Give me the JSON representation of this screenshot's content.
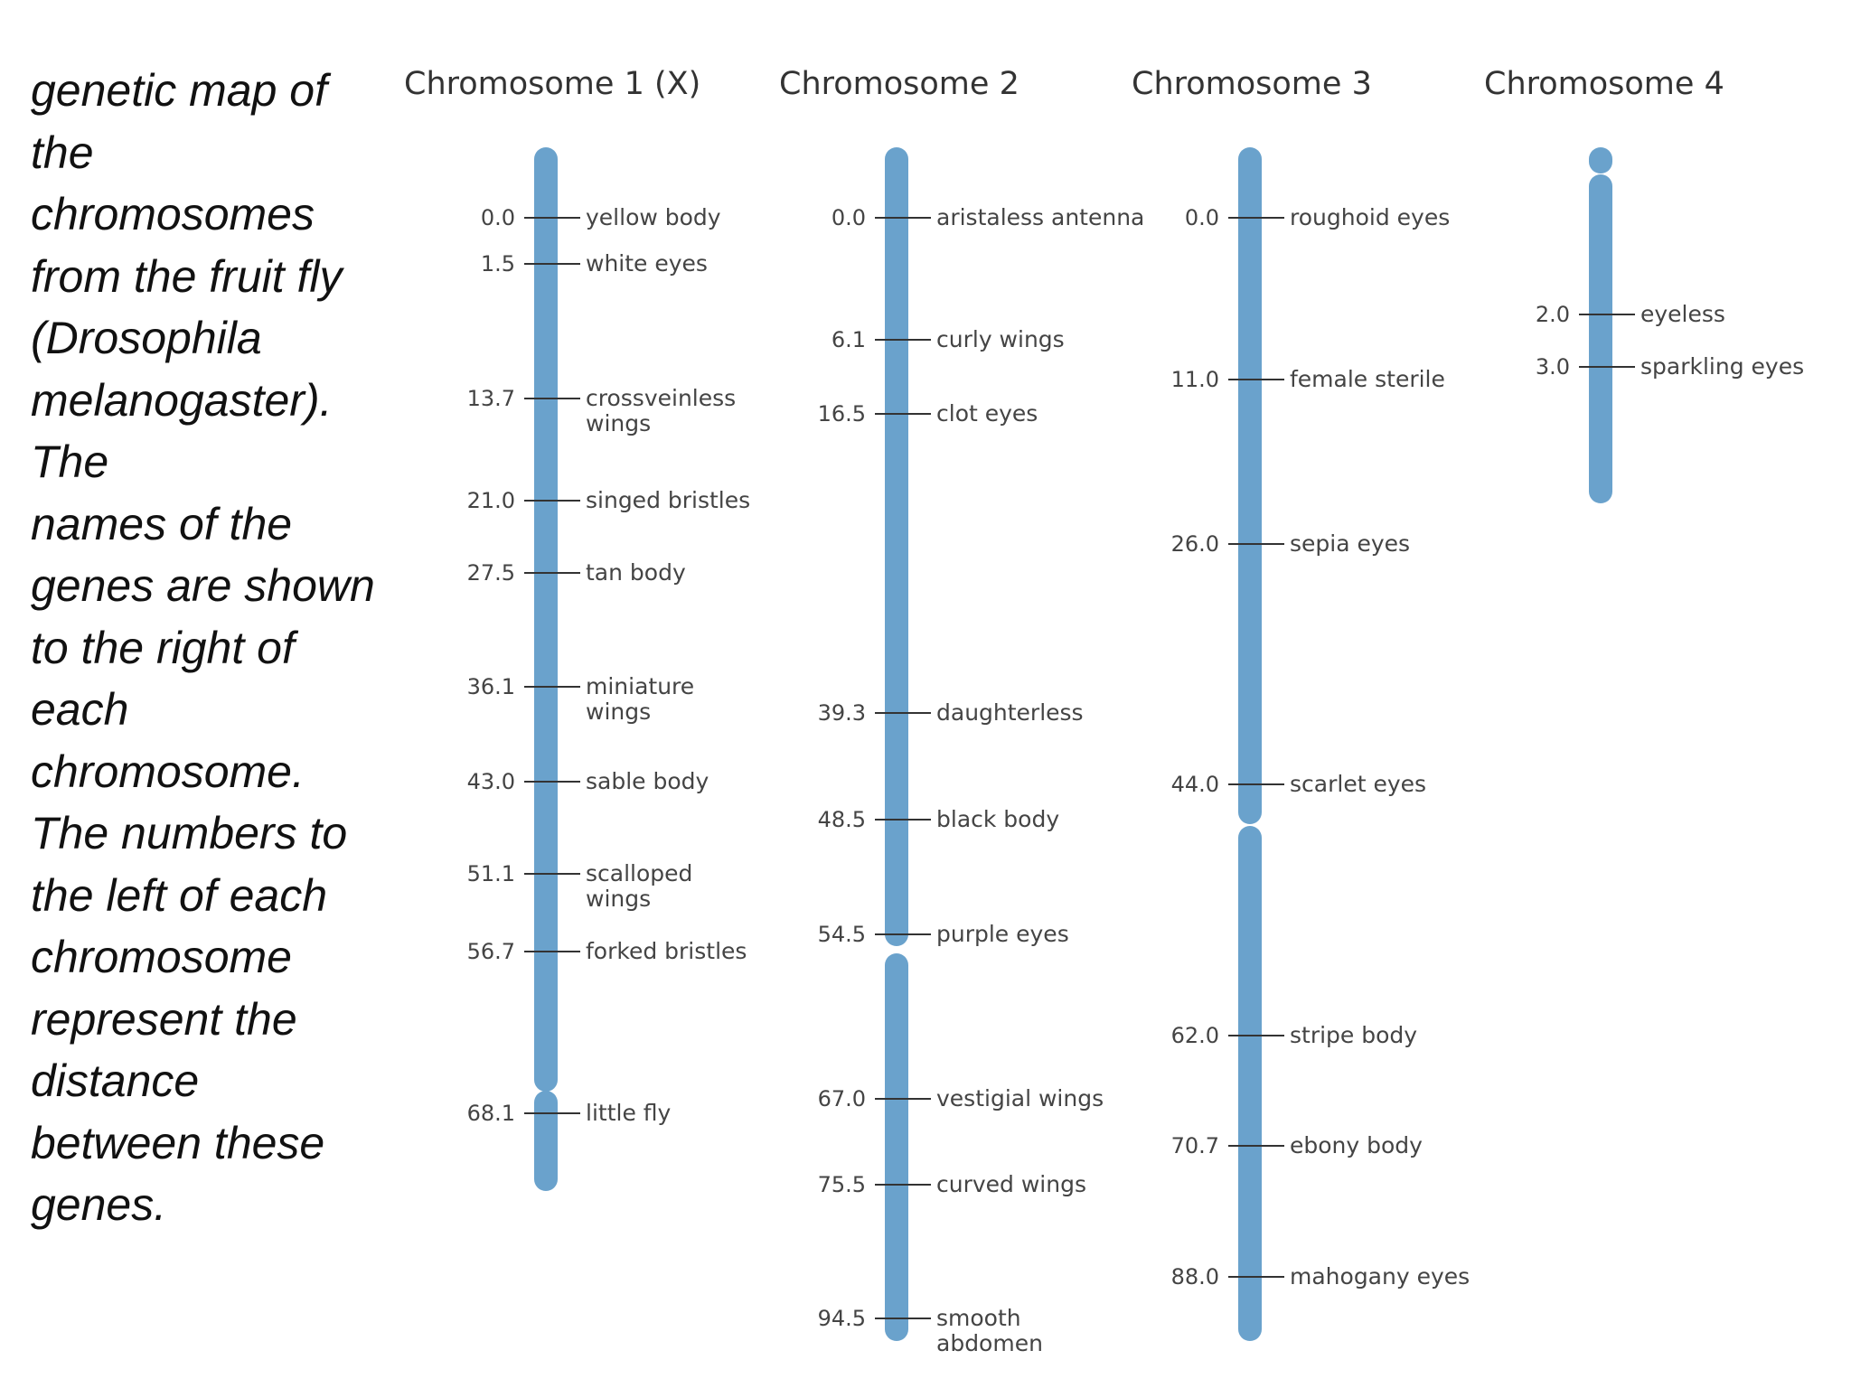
{
  "caption_lines": [
    "genetic map of",
    "the",
    "chromosomes",
    "from the fruit fly",
    "(Drosophila",
    "melanogaster).",
    "The",
    "names of the",
    "genes are shown",
    "to the right of",
    "each",
    "chromosome.",
    "The numbers to",
    "the left of each",
    "chromosome",
    "represent the",
    "distance",
    "between these",
    "genes."
  ],
  "colors": {
    "chromosome": "#6aa2cc",
    "tick": "#333333",
    "text": "#444444"
  },
  "chromosomes": [
    {
      "title": "Chromosome 1 (X)",
      "loci": [
        {
          "pos": "0.0",
          "gene": [
            "yellow body"
          ]
        },
        {
          "pos": "1.5",
          "gene": [
            "white eyes"
          ]
        },
        {
          "pos": "13.7",
          "gene": [
            "crossveinless",
            "wings"
          ]
        },
        {
          "pos": "21.0",
          "gene": [
            "singed bristles"
          ]
        },
        {
          "pos": "27.5",
          "gene": [
            "tan body"
          ]
        },
        {
          "pos": "36.1",
          "gene": [
            "miniature",
            "wings"
          ]
        },
        {
          "pos": "43.0",
          "gene": [
            "sable body"
          ]
        },
        {
          "pos": "51.1",
          "gene": [
            "scalloped",
            "wings"
          ]
        },
        {
          "pos": "56.7",
          "gene": [
            "forked bristles"
          ]
        },
        {
          "pos": "68.1",
          "gene": [
            "little fly"
          ]
        }
      ]
    },
    {
      "title": "Chromosome 2",
      "loci": [
        {
          "pos": "0.0",
          "gene": [
            "aristaless antenna"
          ]
        },
        {
          "pos": "6.1",
          "gene": [
            "curly wings"
          ]
        },
        {
          "pos": "16.5",
          "gene": [
            "clot eyes"
          ]
        },
        {
          "pos": "39.3",
          "gene": [
            "daughterless"
          ]
        },
        {
          "pos": "48.5",
          "gene": [
            "black body"
          ]
        },
        {
          "pos": "54.5",
          "gene": [
            "purple eyes"
          ]
        },
        {
          "pos": "67.0",
          "gene": [
            "vestigial wings"
          ]
        },
        {
          "pos": "75.5",
          "gene": [
            "curved wings"
          ]
        },
        {
          "pos": "94.5",
          "gene": [
            "smooth",
            "abdomen"
          ]
        }
      ]
    },
    {
      "title": "Chromosome 3",
      "loci": [
        {
          "pos": "0.0",
          "gene": [
            "roughoid eyes"
          ]
        },
        {
          "pos": "11.0",
          "gene": [
            "female sterile"
          ]
        },
        {
          "pos": "26.0",
          "gene": [
            "sepia eyes"
          ]
        },
        {
          "pos": "44.0",
          "gene": [
            "scarlet eyes"
          ]
        },
        {
          "pos": "62.0",
          "gene": [
            "stripe body"
          ]
        },
        {
          "pos": "70.7",
          "gene": [
            "ebony body"
          ]
        },
        {
          "pos": "88.0",
          "gene": [
            "mahogany eyes"
          ]
        }
      ]
    },
    {
      "title": "Chromosome 4",
      "loci": [
        {
          "pos": "2.0",
          "gene": [
            "eyeless"
          ]
        },
        {
          "pos": "3.0",
          "gene": [
            "sparkling eyes"
          ]
        }
      ]
    }
  ]
}
